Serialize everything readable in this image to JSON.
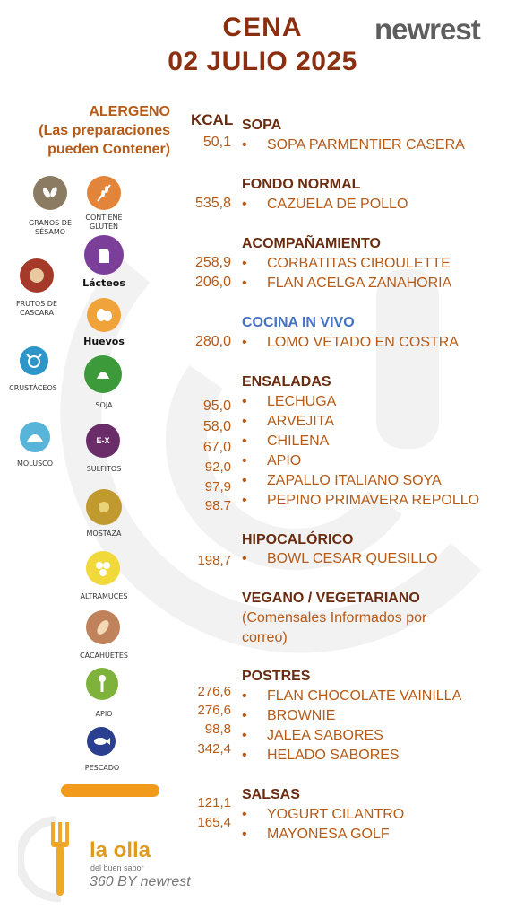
{
  "header": {
    "title_line1": "CENA",
    "title_line2": "02 JULIO 2025",
    "brand": "newrest"
  },
  "allergen_header": {
    "line1": "ALERGENO",
    "line2": "(Las preparaciones",
    "line3": "pueden Contener)"
  },
  "kcal_header": "KCAL",
  "allergens": {
    "sesamo": "GRANOS DE SÉSAMO",
    "gluten": "CONTIENE GLUTEN",
    "lacteos": "Lácteos",
    "frutos": "FRUTOS DE CASCARA",
    "huevos": "Huevos",
    "crustaceos": "CRUSTÁCEOS",
    "soja": "SOJA",
    "molusco": "MOLUSCO",
    "sulfitos": "SULFITOS",
    "sulfitos_glyph": "E-X",
    "mostaza": "MOSTAZA",
    "altramuces": "ALTRAMUCES",
    "cacahuetes": "CACAHUETES",
    "apio": "APIO",
    "pescado": "PESCADO"
  },
  "footer_logo": {
    "name": "la olla",
    "tagline": "del buen sabor",
    "sub": "360 BY newrest"
  },
  "bullet": "•",
  "menu": {
    "sopa": {
      "title": "SOPA",
      "items": [
        {
          "kcal": "50,1",
          "name": "SOPA PARMENTIER CASERA"
        }
      ]
    },
    "fondo": {
      "title": "FONDO NORMAL",
      "items": [
        {
          "kcal": "535,8",
          "name": "CAZUELA DE POLLO"
        }
      ]
    },
    "acomp": {
      "title": "ACOMPAÑAMIENTO",
      "items": [
        {
          "kcal": "258,9",
          "name": "CORBATITAS CIBOULETTE"
        },
        {
          "kcal": "206,0",
          "name": "FLAN ACELGA ZANAHORIA"
        }
      ]
    },
    "vivo": {
      "title": "COCINA IN VIVO",
      "items": [
        {
          "kcal": "280,0",
          "name": "LOMO VETADO EN COSTRA"
        }
      ]
    },
    "ensaladas": {
      "title": "ENSALADAS",
      "items": [
        {
          "kcal": "95,0",
          "name": "LECHUGA"
        },
        {
          "kcal": "58,0",
          "name": "ARVEJITA"
        },
        {
          "kcal": "67,0",
          "name": "CHILENA"
        },
        {
          "kcal": "92,0",
          "name": "APIO"
        },
        {
          "kcal": "97,9",
          "name": "ZAPALLO ITALIANO SOYA"
        },
        {
          "kcal": "98.7",
          "name": "PEPINO PRIMAVERA REPOLLO"
        }
      ]
    },
    "hipo": {
      "title": "HIPOCALÓRICO",
      "items": [
        {
          "kcal": "198,7",
          "name": "BOWL CESAR QUESILLO"
        }
      ]
    },
    "vegano": {
      "title": "VEGANO / VEGETARIANO",
      "note_line1": "(Comensales Informados por",
      "note_line2": "correo)"
    },
    "postres": {
      "title": "POSTRES",
      "items": [
        {
          "kcal": "276,6",
          "name": "FLAN CHOCOLATE VAINILLA"
        },
        {
          "kcal": "276,6",
          "name": "BROWNIE"
        },
        {
          "kcal": "98,8",
          "name": "JALEA SABORES"
        },
        {
          "kcal": "342,4",
          "name": "HELADO SABORES"
        }
      ]
    },
    "salsas": {
      "title": "SALSAS",
      "items": [
        {
          "kcal": "121,1",
          "name": "YOGURT CILANTRO"
        },
        {
          "kcal": "165,4",
          "name": "MAYONESA  GOLF"
        }
      ]
    }
  }
}
